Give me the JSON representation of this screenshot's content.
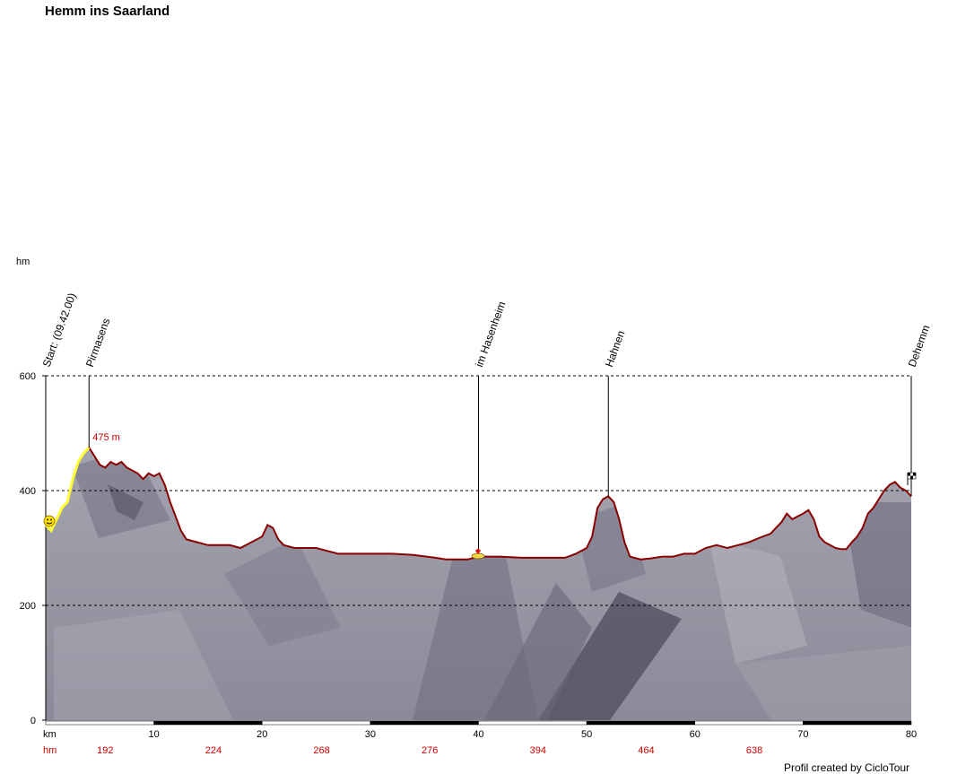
{
  "title": "Hemm ins Saarland",
  "credit": "Profil created by CicloTour",
  "chart_data": {
    "type": "area",
    "title": "Hemm ins Saarland",
    "ylabel": "hm",
    "xlabel": "km",
    "ylim": [
      0,
      600
    ],
    "xlim": [
      0,
      80
    ],
    "y_ticks": [
      0,
      200,
      400,
      600
    ],
    "x_ticks": [
      0,
      10,
      20,
      30,
      40,
      50,
      60,
      70,
      80
    ],
    "gridlines_y": [
      200,
      400,
      600
    ],
    "series": [
      {
        "x": [
          0,
          0.5,
          1,
          1.5,
          2,
          2.5,
          3,
          3.5,
          4,
          4.5,
          5,
          5.5,
          6,
          6.5,
          7,
          7.5,
          8,
          8.5,
          9,
          9.5,
          10,
          10.5,
          11,
          11.5,
          12,
          12.5,
          13,
          14,
          15,
          16,
          17,
          18,
          19,
          20,
          20.5,
          21,
          21.5,
          22,
          23,
          24,
          25,
          26,
          27,
          28,
          29,
          30,
          32,
          34,
          36,
          37,
          38,
          39,
          40,
          41,
          42,
          44,
          46,
          48,
          49,
          50,
          50.5,
          51,
          51.5,
          52,
          52.5,
          53,
          53.5,
          54,
          55,
          56,
          57,
          58,
          59,
          60,
          61,
          62,
          63,
          64,
          65,
          66,
          67,
          67.5,
          68,
          68.5,
          69,
          69.5,
          70,
          70.5,
          71,
          71.5,
          72,
          72.5,
          73,
          73.5,
          74,
          74.5,
          75,
          75.5,
          76,
          76.5,
          77,
          77.5,
          78,
          78.5,
          79,
          79.5,
          80
        ],
        "y": [
          340,
          330,
          350,
          370,
          380,
          420,
          450,
          465,
          475,
          460,
          445,
          440,
          450,
          445,
          450,
          440,
          435,
          430,
          420,
          430,
          425,
          430,
          410,
          380,
          355,
          330,
          315,
          310,
          305,
          305,
          305,
          300,
          310,
          320,
          340,
          335,
          315,
          305,
          300,
          300,
          300,
          295,
          290,
          290,
          290,
          290,
          290,
          288,
          283,
          280,
          280,
          280,
          285,
          285,
          285,
          283,
          283,
          283,
          290,
          300,
          320,
          370,
          385,
          390,
          380,
          350,
          310,
          285,
          280,
          282,
          285,
          285,
          290,
          290,
          300,
          305,
          300,
          305,
          310,
          318,
          325,
          335,
          345,
          360,
          350,
          355,
          360,
          366,
          350,
          320,
          310,
          305,
          300,
          298,
          298,
          310,
          320,
          335,
          360,
          370,
          385,
          400,
          410,
          415,
          405,
          400,
          390
        ]
      }
    ],
    "km_ticks": [
      10,
      20,
      30,
      40,
      50,
      60,
      70,
      80
    ],
    "hm_row_label": "hm",
    "km_row_label": "km",
    "cumulative_climb": [
      "192",
      "224",
      "268",
      "276",
      "394",
      "464",
      "638"
    ],
    "max_label": "475 m",
    "waypoints": [
      {
        "km": 0,
        "label": "Start: (09.42.00)",
        "has_line": false
      },
      {
        "km": 4,
        "label": "Pirmasens",
        "has_line": true
      },
      {
        "km": 40,
        "label": "im Hasenheim",
        "has_line": true
      },
      {
        "km": 52,
        "label": "Hahnen",
        "has_line": true
      },
      {
        "km": 80,
        "label": "Dehemm",
        "has_line": true
      }
    ],
    "climb_highlight": {
      "from_km": 0,
      "to_km": 4,
      "color": "#ffff33"
    },
    "colors": {
      "terrain_fill": "#9a9aa6",
      "terrain_dark": "#5a5868",
      "profile_line": "#8b0000",
      "climb_line": "#ffff33",
      "grid": "#000000",
      "hm_labels": "#cc0000"
    }
  }
}
